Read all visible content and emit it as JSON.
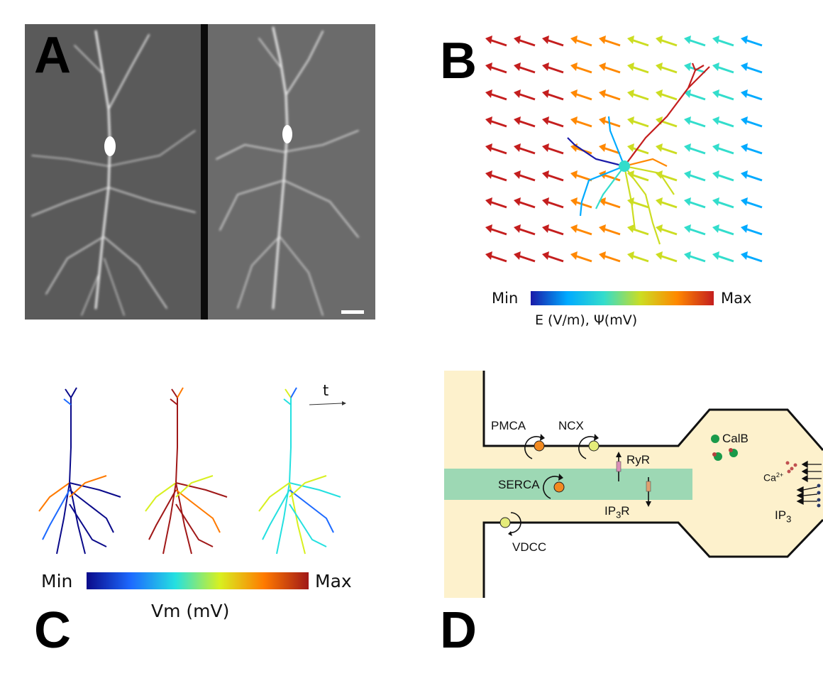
{
  "panels": {
    "a": {
      "letter": "A"
    },
    "b": {
      "letter": "B",
      "colorbar": {
        "min_label": "Min",
        "max_label": "Max",
        "caption": "E (V/m), Ψ(mV)",
        "colors": [
          "#1a1aa8",
          "#00aaff",
          "#33ddcc",
          "#ccdd22",
          "#ff8800",
          "#c41e1e"
        ]
      }
    },
    "c": {
      "letter": "C",
      "time_label": "t",
      "colorbar": {
        "min_label": "Min",
        "max_label": "Max",
        "caption": "Vm (mV)",
        "colors": [
          "#0a0a8a",
          "#1d6aff",
          "#24e0e0",
          "#d8f020",
          "#ff7a00",
          "#a01818"
        ]
      }
    },
    "d": {
      "letter": "D",
      "labels": {
        "pmca": "PMCA",
        "ncx": "NCX",
        "ryr": "RyR",
        "calb": "CalB",
        "serca": "SERCA",
        "ip3r": "IP3R",
        "ca": "Ca2+",
        "ip3": "IP3",
        "vdcc": "VDCC"
      },
      "colors": {
        "cytosol": "#fdf1cc",
        "er": "#9dd8b4",
        "membrane": "#111111",
        "pump_orange": "#f28a20",
        "pump_yellow": "#e5ec7a",
        "calb_green": "#1a9a4a"
      }
    }
  }
}
